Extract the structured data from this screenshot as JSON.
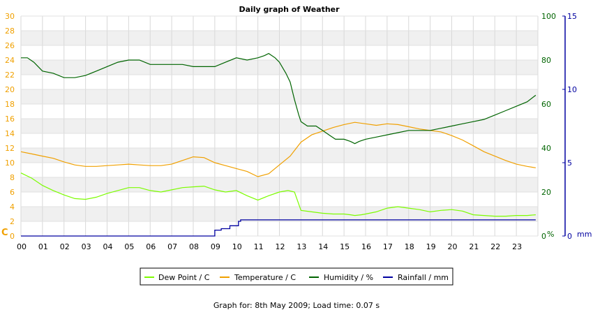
{
  "chart_data": {
    "type": "line",
    "title": "Daily graph of Weather",
    "x_ticks": [
      "00",
      "01",
      "02",
      "03",
      "04",
      "05",
      "06",
      "07",
      "08",
      "09",
      "10",
      "11",
      "12",
      "13",
      "14",
      "15",
      "16",
      "17",
      "18",
      "19",
      "20",
      "21",
      "22",
      "23"
    ],
    "xlim": [
      0,
      24
    ],
    "left_axis": {
      "unit_label": "C",
      "ticks": [
        "0",
        "2",
        "4",
        "6",
        "8",
        "10",
        "12",
        "14",
        "16",
        "18",
        "20",
        "22",
        "24",
        "26",
        "28",
        "30"
      ],
      "ylim": [
        0,
        30
      ],
      "color": "#f0a000"
    },
    "right_axis_1": {
      "unit_label": "%",
      "ticks": [
        "0",
        "20",
        "40",
        "60",
        "80",
        "100"
      ],
      "ylim": [
        0,
        100
      ],
      "color": "#006400"
    },
    "right_axis_2": {
      "unit_label": "mm",
      "ticks": [
        "0",
        "5",
        "10",
        "15"
      ],
      "ylim": [
        0,
        15
      ],
      "color": "#0000a0"
    },
    "grid": true,
    "legend_position": "bottom",
    "series": [
      {
        "name": "Dew Point / C",
        "axis": "left",
        "color": "#7cfc00",
        "x": [
          0,
          0.5,
          1,
          1.5,
          2,
          2.5,
          3,
          3.5,
          4,
          4.5,
          5,
          5.5,
          6,
          6.5,
          7,
          7.5,
          8,
          8.5,
          9,
          9.5,
          10,
          10.5,
          11,
          11.5,
          12,
          12.4,
          12.7,
          13,
          13.5,
          14,
          14.5,
          15,
          15.3,
          15.5,
          15.8,
          16,
          16.5,
          17,
          17.5,
          18,
          18.5,
          19,
          19.5,
          20,
          20.5,
          21,
          21.5,
          22,
          22.5,
          23,
          23.5,
          23.9
        ],
        "values": [
          8.6,
          7.9,
          6.9,
          6.2,
          5.6,
          5.1,
          5.0,
          5.3,
          5.8,
          6.2,
          6.6,
          6.6,
          6.2,
          6.0,
          6.3,
          6.6,
          6.7,
          6.8,
          6.3,
          6.0,
          6.2,
          5.5,
          4.9,
          5.5,
          6.0,
          6.2,
          6.0,
          3.5,
          3.3,
          3.1,
          3.0,
          3.0,
          2.9,
          2.8,
          2.9,
          3.0,
          3.3,
          3.8,
          4.0,
          3.8,
          3.6,
          3.3,
          3.5,
          3.6,
          3.4,
          2.9,
          2.8,
          2.7,
          2.7,
          2.8,
          2.8,
          2.9
        ]
      },
      {
        "name": "Temperature / C",
        "axis": "left",
        "color": "#f0a000",
        "x": [
          0,
          0.5,
          1,
          1.5,
          2,
          2.5,
          3,
          3.5,
          4,
          4.5,
          5,
          5.5,
          6,
          6.5,
          7,
          7.5,
          8,
          8.5,
          9,
          9.5,
          10,
          10.5,
          11,
          11.5,
          12,
          12.5,
          13,
          13.5,
          14,
          14.5,
          15,
          15.5,
          16,
          16.5,
          17,
          17.5,
          18,
          18.5,
          19,
          19.5,
          20,
          20.5,
          21,
          21.5,
          22,
          22.5,
          23,
          23.5,
          23.9
        ],
        "values": [
          11.5,
          11.2,
          10.9,
          10.6,
          10.1,
          9.7,
          9.5,
          9.5,
          9.6,
          9.7,
          9.8,
          9.7,
          9.6,
          9.6,
          9.8,
          10.3,
          10.8,
          10.7,
          10.0,
          9.6,
          9.2,
          8.8,
          8.1,
          8.5,
          9.7,
          10.9,
          12.8,
          13.8,
          14.3,
          14.8,
          15.2,
          15.5,
          15.3,
          15.1,
          15.3,
          15.2,
          14.9,
          14.6,
          14.4,
          14.2,
          13.7,
          13.1,
          12.3,
          11.5,
          10.9,
          10.3,
          9.8,
          9.5,
          9.3
        ]
      },
      {
        "name": "Humidity / %",
        "axis": "right1",
        "color": "#006400",
        "x": [
          0,
          0.3,
          0.6,
          1,
          1.5,
          2,
          2.5,
          3,
          3.5,
          4,
          4.5,
          5,
          5.5,
          6,
          6.5,
          7,
          7.5,
          8,
          8.5,
          9,
          9.5,
          10,
          10.5,
          11,
          11.3,
          11.5,
          11.8,
          12,
          12.3,
          12.5,
          12.7,
          12.9,
          13,
          13.3,
          13.7,
          14,
          14.3,
          14.6,
          15,
          15.3,
          15.5,
          15.7,
          16,
          16.5,
          17,
          17.5,
          18,
          18.5,
          19,
          19.5,
          20,
          20.5,
          21,
          21.5,
          22,
          22.5,
          23,
          23.5,
          23.9
        ],
        "values": [
          81,
          81,
          79,
          75,
          74,
          72,
          72,
          73,
          75,
          77,
          79,
          80,
          80,
          78,
          78,
          78,
          78,
          77,
          77,
          77,
          79,
          81,
          80,
          81,
          82,
          83,
          81,
          79,
          74,
          70,
          62,
          55,
          52,
          50,
          50,
          48,
          46,
          44,
          44,
          43,
          42,
          43,
          44,
          45,
          46,
          47,
          48,
          48,
          48,
          49,
          50,
          51,
          52,
          53,
          55,
          57,
          59,
          61,
          64
        ]
      },
      {
        "name": "Rainfall / mm",
        "axis": "right2",
        "color": "#0000a0",
        "x": [
          0,
          8.95,
          9.0,
          9.3,
          9.7,
          10.0,
          10.1,
          10.2,
          23.9
        ],
        "values": [
          0,
          0,
          0.4,
          0.5,
          0.7,
          0.7,
          1.0,
          1.1,
          1.1
        ]
      }
    ]
  },
  "footer": {
    "caption": "Graph for: 8th May 2009; Load time: 0.07 s"
  }
}
